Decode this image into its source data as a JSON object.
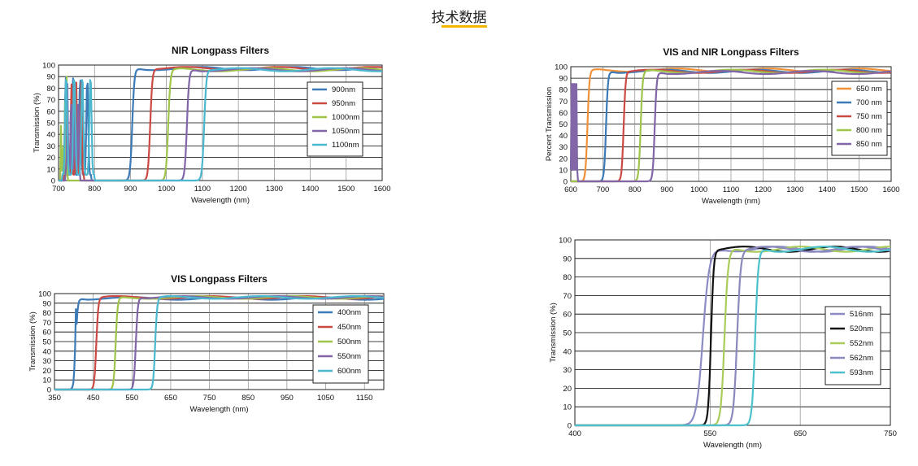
{
  "page": {
    "title": "技术数据"
  },
  "chart_data": [
    {
      "id": "nir",
      "type": "line",
      "title": "NIR Longpass Filters",
      "xlabel": "Wavelength (nm)",
      "ylabel": "Transmission (%)",
      "xlim": [
        700,
        1600
      ],
      "ylim": [
        0,
        100
      ],
      "xticks": [
        700,
        800,
        900,
        1000,
        1100,
        1200,
        1300,
        1400,
        1500,
        1600
      ],
      "yticks": [
        0,
        10,
        20,
        30,
        40,
        50,
        60,
        70,
        80,
        90,
        100
      ],
      "legend_position": "right",
      "series": [
        {
          "name": "900nm",
          "color": "#3d7ab8",
          "cut_on": 905,
          "cut_width": 12,
          "plateau": 97,
          "ripple_x": [
            710,
            790
          ],
          "ripple_y": [
            5,
            90
          ]
        },
        {
          "name": "950nm",
          "color": "#cc4a44",
          "cut_on": 955,
          "cut_width": 12,
          "plateau": 97,
          "ripple_x": [
            715,
            770
          ],
          "ripple_y": [
            5,
            85
          ]
        },
        {
          "name": "1000nm",
          "color": "#9ec44a",
          "cut_on": 1005,
          "cut_width": 12,
          "plateau": 96,
          "ripple_x": [
            705,
            725
          ],
          "ripple_y": [
            5,
            90
          ]
        },
        {
          "name": "1050nm",
          "color": "#8266a8",
          "cut_on": 1057,
          "cut_width": 12,
          "plateau": 96,
          "ripple_x": [
            720,
            760
          ],
          "ripple_y": [
            10,
            85
          ]
        },
        {
          "name": "1100nm",
          "color": "#4bb8cf",
          "cut_on": 1105,
          "cut_width": 12,
          "plateau": 96,
          "ripple_x": [
            710,
            800
          ],
          "ripple_y": [
            5,
            92
          ]
        }
      ]
    },
    {
      "id": "visnir",
      "type": "line",
      "title": "VIS and NIR Longpass Filters",
      "xlabel": "Wavelength (nm)",
      "ylabel": "Percent Transmission",
      "xlim": [
        600,
        1600
      ],
      "ylim": [
        0,
        100
      ],
      "xticks": [
        600,
        700,
        800,
        900,
        1000,
        1100,
        1200,
        1300,
        1400,
        1500,
        1600
      ],
      "yticks": [
        0,
        10,
        20,
        30,
        40,
        50,
        60,
        70,
        80,
        90,
        100
      ],
      "legend_position": "right",
      "series": [
        {
          "name": "650 nm",
          "color": "#f0913a",
          "cut_on": 652,
          "cut_width": 12,
          "plateau": 97,
          "ripple_x": [],
          "ripple_y": []
        },
        {
          "name": "700 nm",
          "color": "#3d7ab8",
          "cut_on": 710,
          "cut_width": 12,
          "plateau": 96,
          "ripple_x": [],
          "ripple_y": []
        },
        {
          "name": "750 nm",
          "color": "#cc4a44",
          "cut_on": 765,
          "cut_width": 12,
          "plateau": 96,
          "ripple_x": [],
          "ripple_y": []
        },
        {
          "name": "800 nm",
          "color": "#9ec44a",
          "cut_on": 818,
          "cut_width": 12,
          "plateau": 96,
          "ripple_x": [],
          "ripple_y": []
        },
        {
          "name": "850 nm",
          "color": "#8266a8",
          "cut_on": 862,
          "cut_width": 12,
          "plateau": 95,
          "ripple_x": [
            600,
            620
          ],
          "ripple_y": [
            10,
            85
          ]
        }
      ]
    },
    {
      "id": "vis",
      "type": "line",
      "title": "VIS Longpass Filters",
      "xlabel": "Wavelength (nm)",
      "ylabel": "Transmission (%)",
      "xlim": [
        350,
        1200
      ],
      "ylim": [
        0,
        100
      ],
      "xticks": [
        350,
        450,
        550,
        650,
        750,
        850,
        950,
        1050,
        1150
      ],
      "yticks": [
        0,
        10,
        20,
        30,
        40,
        50,
        60,
        70,
        80,
        90,
        100
      ],
      "legend_position": "right",
      "series": [
        {
          "name": "400nm",
          "color": "#3d7ab8",
          "cut_on": 405,
          "cut_width": 10,
          "plateau": 95,
          "ripple_x": [
            400,
            440
          ],
          "ripple_y": [
            20,
            85
          ]
        },
        {
          "name": "450nm",
          "color": "#cc4a44",
          "cut_on": 458,
          "cut_width": 10,
          "plateau": 96,
          "ripple_x": [],
          "ripple_y": []
        },
        {
          "name": "500nm",
          "color": "#9ec44a",
          "cut_on": 508,
          "cut_width": 10,
          "plateau": 96,
          "ripple_x": [],
          "ripple_y": []
        },
        {
          "name": "550nm",
          "color": "#8266a8",
          "cut_on": 560,
          "cut_width": 10,
          "plateau": 96,
          "ripple_x": [],
          "ripple_y": []
        },
        {
          "name": "600nm",
          "color": "#4bb8cf",
          "cut_on": 610,
          "cut_width": 10,
          "plateau": 96,
          "ripple_x": [],
          "ripple_y": []
        }
      ]
    },
    {
      "id": "narrow",
      "type": "line",
      "title": "",
      "xlabel": "Wavelength (nm)",
      "ylabel": "Transmission (%)",
      "xlim": [
        400,
        750
      ],
      "ylim": [
        0,
        100
      ],
      "xticks": [
        400,
        550,
        650,
        750
      ],
      "yticks": [
        0,
        10,
        20,
        30,
        40,
        50,
        60,
        70,
        80,
        90,
        100
      ],
      "legend_position": "right",
      "series": [
        {
          "name": "516nm",
          "color": "#8c8cc4",
          "cut_on": 542,
          "cut_width": 14,
          "plateau": 95,
          "ripple_x": [],
          "ripple_y": []
        },
        {
          "name": "520nm",
          "color": "#111111",
          "cut_on": 551,
          "cut_width": 6,
          "plateau": 95,
          "ripple_x": [],
          "ripple_y": []
        },
        {
          "name": "552nm",
          "color": "#a9cc5a",
          "cut_on": 566,
          "cut_width": 8,
          "plateau": 95,
          "ripple_x": [],
          "ripple_y": []
        },
        {
          "name": "562nm",
          "color": "#8a88bd",
          "cut_on": 580,
          "cut_width": 8,
          "plateau": 95,
          "ripple_x": [],
          "ripple_y": []
        },
        {
          "name": "593nm",
          "color": "#4cc1cc",
          "cut_on": 600,
          "cut_width": 7,
          "plateau": 95,
          "ripple_x": [],
          "ripple_y": []
        }
      ]
    }
  ]
}
